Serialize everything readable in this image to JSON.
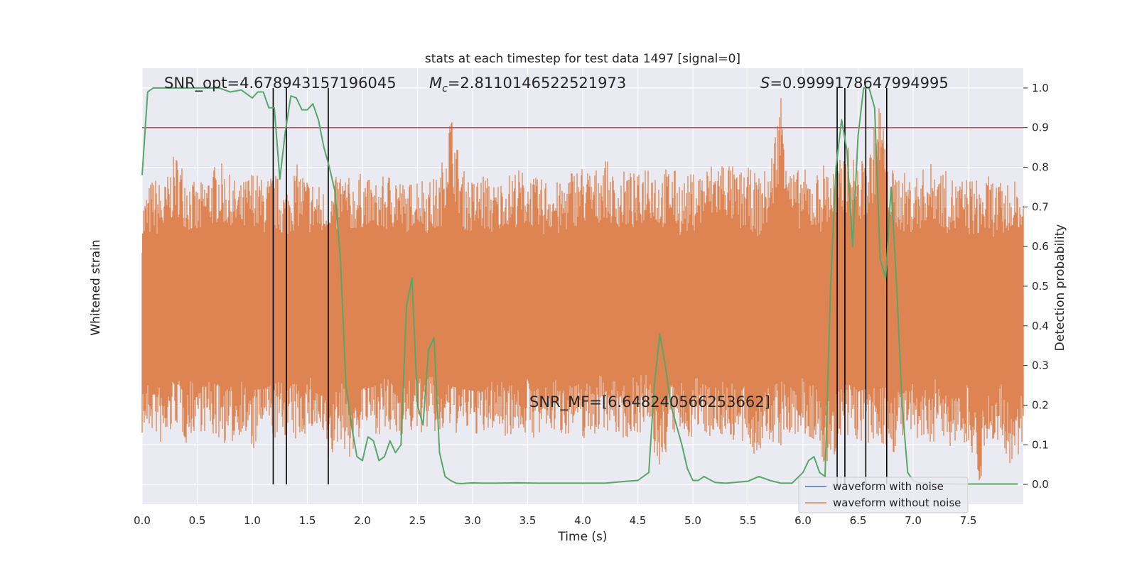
{
  "chart_data": {
    "type": "line",
    "title": "stats at each timestep for test data 1497 [signal=0]",
    "xlabel": "Time (s)",
    "ylabel_left": "Whitened strain",
    "ylabel_right": "Detection probability",
    "xlim": [
      0,
      8
    ],
    "ylim_right": [
      -0.05,
      1.05
    ],
    "x_ticks": [
      0.0,
      0.5,
      1.0,
      1.5,
      2.0,
      2.5,
      3.0,
      3.5,
      4.0,
      4.5,
      5.0,
      5.5,
      6.0,
      6.5,
      7.0,
      7.5
    ],
    "x_tick_labels": [
      "0.0",
      "0.5",
      "1.0",
      "1.5",
      "2.0",
      "2.5",
      "3.0",
      "3.5",
      "4.0",
      "4.5",
      "5.0",
      "5.5",
      "6.0",
      "6.5",
      "7.0",
      "7.5"
    ],
    "y_right_ticks": [
      0.0,
      0.1,
      0.2,
      0.3,
      0.4,
      0.5,
      0.6,
      0.7,
      0.8,
      0.9,
      1.0
    ],
    "y_right_tick_labels": [
      "0.0",
      "0.1",
      "0.2",
      "0.3",
      "0.4",
      "0.5",
      "0.6",
      "0.7",
      "0.8",
      "0.9",
      "1.0"
    ],
    "grid": true,
    "background": "#eaeaf2",
    "threshold": {
      "value": 0.9,
      "color": "#c44e52"
    },
    "vertical_lines": {
      "x": [
        1.19,
        1.31,
        1.69,
        6.31,
        6.38,
        6.57,
        6.76
      ],
      "y_range": [
        0.0,
        1.0
      ],
      "color": "#000000"
    },
    "annotations": {
      "snr_opt": "SNR_opt=4.678943157196045",
      "mc_symbol": "M",
      "mc_subscript": "c",
      "mc_value": "=2.8110146522521973",
      "s_symbol": "S",
      "s_value": "=0.9999178647994995",
      "snr_mf": "SNR_MF=[6.648240566253662]"
    },
    "series": [
      {
        "name": "waveform with noise",
        "color": "#4c72b0",
        "values": [
          0,
          0,
          0,
          0,
          0,
          0,
          0,
          0,
          0,
          0,
          0,
          0,
          0,
          0,
          0,
          0,
          0,
          0,
          0,
          0,
          0,
          0,
          0,
          0,
          0,
          0,
          0,
          0,
          0,
          0,
          0,
          0,
          0,
          0,
          0,
          0,
          0,
          0,
          0,
          0,
          0,
          0,
          0,
          0,
          0,
          0,
          0,
          0,
          0,
          0,
          0,
          0,
          0,
          0,
          0,
          0,
          0,
          0,
          0,
          0,
          0,
          0,
          0,
          0,
          0,
          0,
          0,
          0,
          0,
          0,
          0,
          0,
          0,
          0,
          0,
          0,
          0,
          0,
          0,
          0,
          0
        ]
      },
      {
        "name": "waveform without noise",
        "color": "#dd8452",
        "envelope_upper": [
          0.72,
          0.78,
          0.76,
          0.84,
          0.8,
          0.75,
          0.79,
          0.82,
          0.78,
          0.76,
          0.8,
          0.77,
          0.79,
          0.75,
          0.81,
          0.78,
          0.76,
          0.74,
          0.8,
          0.77,
          0.79,
          0.76,
          0.78,
          0.8,
          0.75,
          0.79,
          0.77,
          0.78,
          0.95,
          0.8,
          0.77,
          0.79,
          0.76,
          0.78,
          0.8,
          0.79,
          0.77,
          0.78,
          0.76,
          0.8,
          0.81,
          0.79,
          0.83,
          0.77,
          0.8,
          0.78,
          0.84,
          0.79,
          0.81,
          0.77,
          0.79,
          0.8,
          0.82,
          0.83,
          0.79,
          0.8,
          0.78,
          0.81,
          1.0,
          0.79,
          0.8,
          0.78,
          0.82,
          0.8,
          0.86,
          0.81,
          0.84,
          0.98,
          0.8,
          0.79,
          0.78,
          0.8,
          0.82,
          0.79,
          0.77,
          0.78,
          0.77,
          0.78,
          0.76,
          0.77,
          0.75
        ],
        "envelope_lower": [
          0.12,
          0.13,
          0.08,
          0.15,
          0.1,
          0.14,
          0.12,
          0.11,
          0.09,
          0.13,
          0.07,
          0.14,
          0.11,
          0.12,
          0.1,
          0.13,
          0.12,
          0.04,
          0.11,
          0.05,
          0.14,
          0.13,
          0.12,
          0.11,
          0.13,
          0.12,
          0.14,
          0.11,
          0.13,
          0.12,
          0.13,
          0.11,
          0.14,
          0.12,
          0.13,
          0.12,
          0.11,
          0.13,
          0.12,
          0.13,
          0.11,
          0.12,
          0.14,
          0.12,
          0.11,
          0.13,
          0.12,
          0.02,
          0.12,
          0.11,
          0.12,
          0.13,
          0.11,
          0.12,
          0.1,
          0.08,
          0.07,
          0.1,
          0.09,
          0.11,
          0.12,
          0.1,
          0.03,
          0.08,
          0.09,
          0.11,
          0.08,
          0.1,
          0.07,
          0.11,
          0.1,
          0.09,
          0.11,
          0.1,
          0.09,
          0.11,
          0.0,
          0.1,
          0.11,
          0.0,
          0.11
        ]
      },
      {
        "color": "#55a868",
        "x": [
          0.0,
          0.05,
          0.1,
          0.15,
          0.2,
          0.3,
          0.4,
          0.5,
          0.6,
          0.7,
          0.8,
          0.9,
          1.0,
          1.05,
          1.1,
          1.15,
          1.2,
          1.25,
          1.3,
          1.35,
          1.4,
          1.45,
          1.5,
          1.55,
          1.6,
          1.65,
          1.7,
          1.75,
          1.8,
          1.85,
          1.9,
          1.95,
          2.0,
          2.05,
          2.1,
          2.15,
          2.2,
          2.25,
          2.3,
          2.35,
          2.4,
          2.45,
          2.5,
          2.55,
          2.6,
          2.65,
          2.7,
          2.75,
          2.8,
          2.85,
          2.9,
          2.95,
          3.0,
          3.1,
          3.2,
          3.4,
          3.6,
          3.8,
          4.0,
          4.2,
          4.4,
          4.5,
          4.6,
          4.65,
          4.7,
          4.75,
          4.8,
          4.85,
          4.9,
          4.95,
          5.0,
          5.05,
          5.1,
          5.2,
          5.3,
          5.5,
          5.6,
          5.7,
          5.8,
          5.9,
          6.0,
          6.05,
          6.1,
          6.15,
          6.2,
          6.25,
          6.3,
          6.35,
          6.4,
          6.45,
          6.5,
          6.55,
          6.6,
          6.65,
          6.7,
          6.75,
          6.8,
          6.85,
          6.9,
          6.95,
          7.0,
          7.05,
          7.1,
          7.2,
          7.4,
          7.6,
          7.8,
          7.95
        ],
        "y": [
          0.78,
          0.99,
          1.0,
          1.0,
          1.0,
          1.0,
          1.0,
          1.0,
          1.0,
          1.0,
          0.99,
          0.995,
          0.975,
          0.99,
          0.99,
          0.95,
          0.95,
          0.77,
          0.89,
          0.98,
          0.975,
          0.945,
          0.945,
          0.96,
          0.92,
          0.85,
          0.8,
          0.74,
          0.57,
          0.25,
          0.15,
          0.07,
          0.06,
          0.12,
          0.11,
          0.06,
          0.07,
          0.11,
          0.08,
          0.1,
          0.45,
          0.52,
          0.2,
          0.15,
          0.34,
          0.37,
          0.08,
          0.02,
          0.01,
          0.003,
          0.002,
          0.003,
          0.004,
          0.003,
          0.003,
          0.004,
          0.003,
          0.003,
          0.003,
          0.003,
          0.008,
          0.01,
          0.03,
          0.25,
          0.38,
          0.3,
          0.2,
          0.15,
          0.1,
          0.04,
          0.01,
          0.01,
          0.02,
          0.005,
          0.003,
          0.008,
          0.02,
          0.01,
          0.003,
          0.003,
          0.03,
          0.06,
          0.07,
          0.03,
          0.02,
          0.5,
          0.8,
          0.92,
          0.84,
          0.6,
          0.88,
          1.0,
          1.0,
          0.95,
          0.57,
          0.52,
          0.75,
          0.5,
          0.2,
          0.03,
          0.01,
          0.003,
          0.003,
          0.002,
          0.001,
          0.001,
          0.001,
          0.001
        ]
      }
    ],
    "legend": {
      "placement": "bottom-right",
      "labels": [
        "waveform with noise",
        "waveform without noise"
      ]
    }
  }
}
